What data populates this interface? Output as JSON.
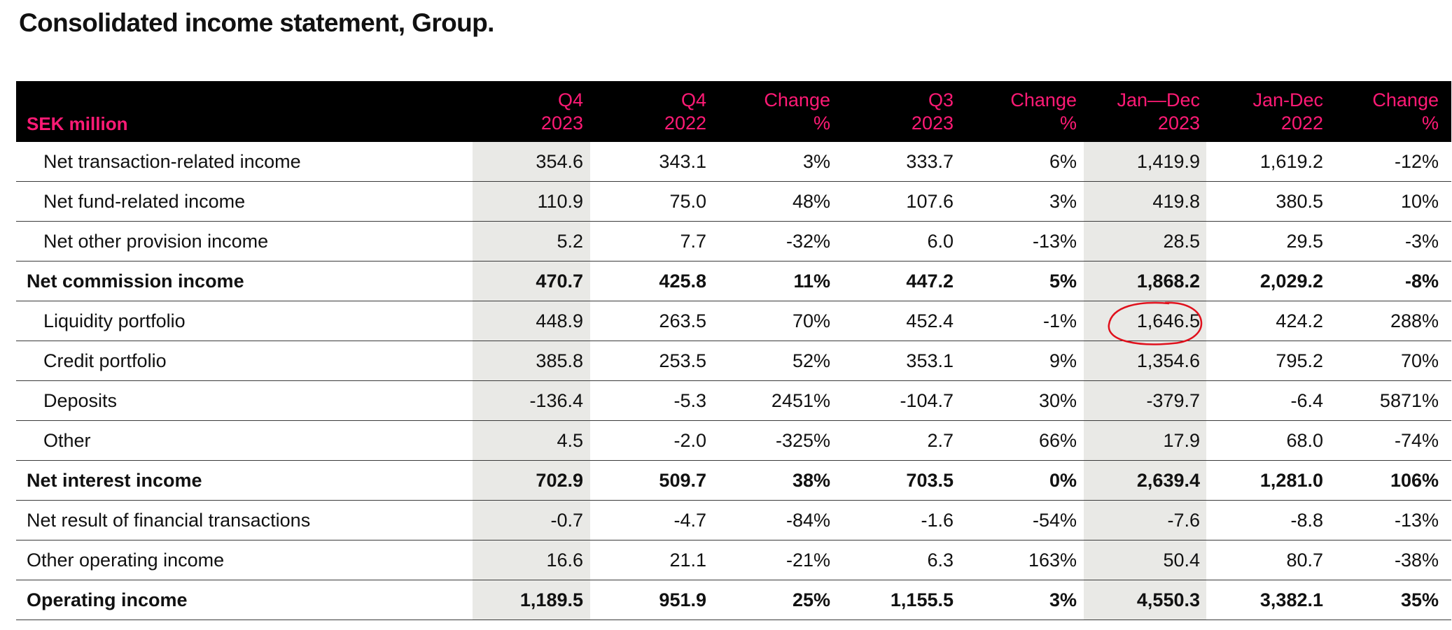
{
  "title": "Consolidated income statement, Group.",
  "header": {
    "label": "SEK million",
    "columns": [
      {
        "line1": "Q4",
        "line2": "2023"
      },
      {
        "line1": "Q4",
        "line2": "2022"
      },
      {
        "line1": "Change",
        "line2": "%"
      },
      {
        "line1": "Q3",
        "line2": "2023"
      },
      {
        "line1": "Change",
        "line2": "%"
      },
      {
        "line1": "Jan—Dec",
        "line2": "2023"
      },
      {
        "line1": "Jan-Dec",
        "line2": "2022"
      },
      {
        "line1": "Change",
        "line2": "%"
      }
    ]
  },
  "rows": [
    {
      "label": "Net transaction-related income",
      "indent": true,
      "bold": false,
      "values": [
        "354.6",
        "343.1",
        "3%",
        "333.7",
        "6%",
        "1,419.9",
        "1,619.2",
        "-12%"
      ]
    },
    {
      "label": "Net fund-related income",
      "indent": true,
      "bold": false,
      "values": [
        "110.9",
        "75.0",
        "48%",
        "107.6",
        "3%",
        "419.8",
        "380.5",
        "10%"
      ]
    },
    {
      "label": "Net other provision income",
      "indent": true,
      "bold": false,
      "values": [
        "5.2",
        "7.7",
        "-32%",
        "6.0",
        "-13%",
        "28.5",
        "29.5",
        "-3%"
      ]
    },
    {
      "label": "Net commission income",
      "indent": false,
      "bold": true,
      "values": [
        "470.7",
        "425.8",
        "11%",
        "447.2",
        "5%",
        "1,868.2",
        "2,029.2",
        "-8%"
      ]
    },
    {
      "label": "Liquidity portfolio",
      "indent": true,
      "bold": false,
      "values": [
        "448.9",
        "263.5",
        "70%",
        "452.4",
        "-1%",
        "1,646.5",
        "424.2",
        "288%"
      ]
    },
    {
      "label": "Credit portfolio",
      "indent": true,
      "bold": false,
      "values": [
        "385.8",
        "253.5",
        "52%",
        "353.1",
        "9%",
        "1,354.6",
        "795.2",
        "70%"
      ]
    },
    {
      "label": "Deposits",
      "indent": true,
      "bold": false,
      "values": [
        "-136.4",
        "-5.3",
        "2451%",
        "-104.7",
        "30%",
        "-379.7",
        "-6.4",
        "5871%"
      ]
    },
    {
      "label": "Other",
      "indent": true,
      "bold": false,
      "values": [
        "4.5",
        "-2.0",
        "-325%",
        "2.7",
        "66%",
        "17.9",
        "68.0",
        "-74%"
      ]
    },
    {
      "label": "Net interest income",
      "indent": false,
      "bold": true,
      "values": [
        "702.9",
        "509.7",
        "38%",
        "703.5",
        "0%",
        "2,639.4",
        "1,281.0",
        "106%"
      ]
    },
    {
      "label": "Net result of financial transactions",
      "indent": false,
      "bold": false,
      "values": [
        "-0.7",
        "-4.7",
        "-84%",
        "-1.6",
        "-54%",
        "-7.6",
        "-8.8",
        "-13%"
      ]
    },
    {
      "label": "Other operating income",
      "indent": false,
      "bold": false,
      "values": [
        "16.6",
        "21.1",
        "-21%",
        "6.3",
        "163%",
        "50.4",
        "80.7",
        "-38%"
      ]
    },
    {
      "label": "Operating income",
      "indent": false,
      "bold": true,
      "values": [
        "1,189.5",
        "951.9",
        "25%",
        "1,155.5",
        "3%",
        "4,550.3",
        "3,382.1",
        "35%"
      ]
    }
  ],
  "highlight": {
    "row": 4,
    "col": 5,
    "color": "#e0101c"
  },
  "colors": {
    "accent": "#ff1a75",
    "header_bg": "#000000",
    "shade": "#e9e9e6"
  }
}
